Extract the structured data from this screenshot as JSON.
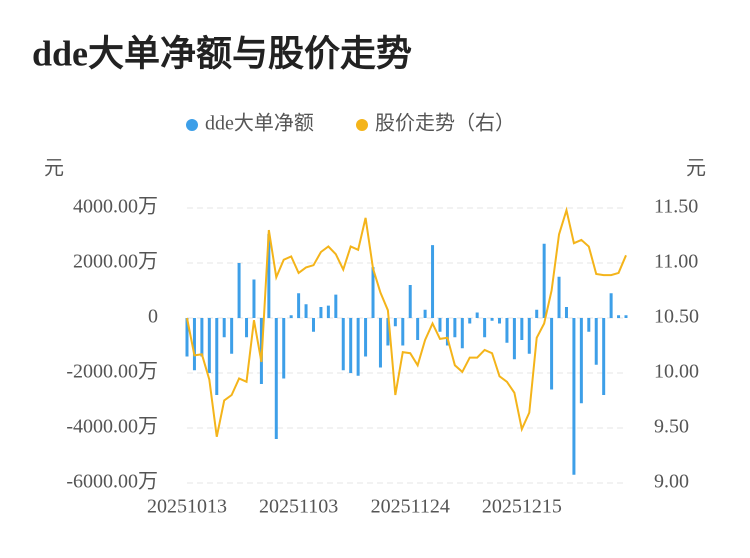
{
  "chart_data": {
    "type": "bar-line",
    "title": "dde大单净额与股价走势",
    "y_axis_label": "元",
    "y2_axis_label": "元",
    "categories": [
      "20251013",
      null,
      null,
      null,
      null,
      null,
      null,
      null,
      null,
      null,
      null,
      null,
      null,
      null,
      null,
      "20251103",
      null,
      null,
      null,
      null,
      null,
      null,
      null,
      null,
      null,
      null,
      null,
      null,
      null,
      null,
      "20251124",
      null,
      null,
      null,
      null,
      null,
      null,
      null,
      null,
      null,
      null,
      null,
      null,
      null,
      null,
      "20251215",
      null,
      null,
      null,
      null,
      null,
      null,
      null,
      null,
      null,
      null,
      null,
      null,
      null,
      null
    ],
    "series": [
      {
        "name": "dde大单净额",
        "type": "bar",
        "color": "#3d9fe8",
        "values": [
          -1400,
          -1900,
          -1400,
          -2000,
          -2800,
          -700,
          -1300,
          2000,
          -700,
          1400,
          -2400,
          3050,
          -4400,
          -2200,
          100,
          900,
          500,
          -500,
          400,
          450,
          850,
          -1900,
          -2000,
          -2100,
          -1400,
          1850,
          -1800,
          -1000,
          -300,
          -1000,
          1200,
          -800,
          300,
          2650,
          -500,
          -1000,
          -700,
          -1100,
          -200,
          200,
          -700,
          -100,
          -200,
          -900,
          -1500,
          -800,
          -1300,
          300,
          2700,
          -2600,
          1500,
          400,
          -5700,
          -3100,
          -500,
          -1700,
          -2800,
          900,
          100,
          100
        ]
      },
      {
        "name": "股价走势（右）",
        "type": "line",
        "axis": "y2",
        "color": "#f4b41a",
        "values": [
          10.5,
          10.16,
          10.17,
          9.94,
          9.42,
          9.75,
          9.8,
          9.95,
          9.92,
          10.48,
          10.1,
          11.3,
          10.87,
          11.03,
          11.06,
          10.91,
          10.96,
          10.98,
          11.1,
          11.15,
          11.08,
          10.94,
          11.15,
          11.12,
          11.41,
          10.95,
          10.73,
          10.57,
          9.8,
          10.19,
          10.18,
          10.07,
          10.3,
          10.45,
          10.31,
          10.32,
          10.07,
          10.01,
          10.14,
          10.14,
          10.21,
          10.18,
          9.97,
          9.92,
          9.82,
          9.49,
          9.64,
          10.32,
          10.45,
          10.75,
          11.26,
          11.48,
          11.18,
          11.21,
          11.15,
          10.9,
          10.89,
          10.89,
          10.91,
          11.07
        ]
      }
    ],
    "ylim": [
      -6000,
      4000
    ],
    "yticks": [
      {
        "value": -6000,
        "label": "-6000.00万"
      },
      {
        "value": -4000,
        "label": "-4000.00万"
      },
      {
        "value": -2000,
        "label": "-2000.00万"
      },
      0,
      {
        "value": 2000,
        "label": "2000.00万"
      },
      {
        "value": 4000,
        "label": "4000.00万"
      }
    ],
    "y2lim": [
      9,
      11.5
    ],
    "y2ticks": [
      {
        "value": 9,
        "label": "9.00"
      },
      {
        "value": 9.5,
        "label": "9.50"
      },
      {
        "value": 10,
        "label": "10.00"
      },
      {
        "value": 10.5,
        "label": "10.50"
      },
      {
        "value": 11,
        "label": "11.00"
      },
      {
        "value": 11.5,
        "label": "11.50"
      }
    ],
    "grid": true
  }
}
